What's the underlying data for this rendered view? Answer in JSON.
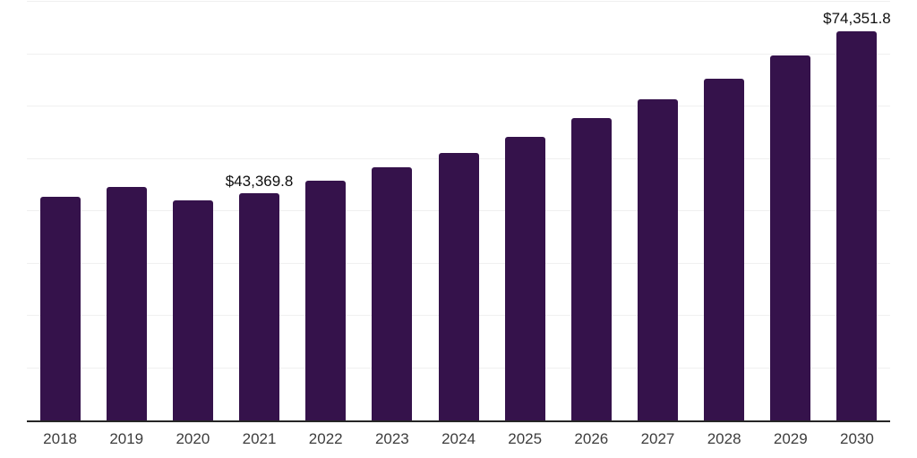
{
  "chart_data": {
    "type": "bar",
    "title": "",
    "xlabel": "",
    "ylabel": "",
    "categories": [
      "2018",
      "2019",
      "2020",
      "2021",
      "2022",
      "2023",
      "2024",
      "2025",
      "2026",
      "2027",
      "2028",
      "2029",
      "2030"
    ],
    "values": [
      42700,
      44700,
      42000,
      43369.8,
      45800,
      48400,
      51100,
      54200,
      57700,
      61300,
      65300,
      69700,
      74351.8
    ],
    "annotations": [
      {
        "category": "2021",
        "text": "$43,369.8"
      },
      {
        "category": "2030",
        "text": "$74,351.8"
      }
    ],
    "ylim": [
      0,
      80000
    ],
    "gridline_interval": 10000,
    "grid": true,
    "legend": false,
    "bar_color": "#35124b",
    "gridline_color": "#f0f0f0",
    "axis_line_color": "#262626",
    "xtick_color": "#3d3d3d",
    "annotation_color": "#0f0f0f"
  }
}
